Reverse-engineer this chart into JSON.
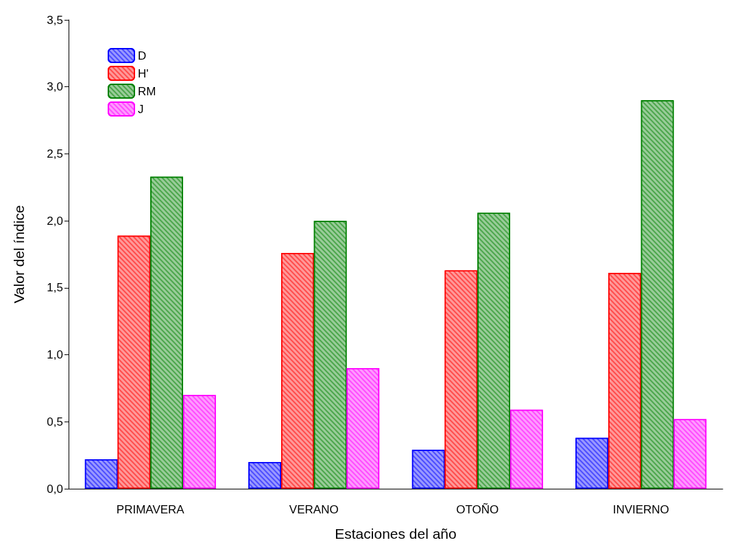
{
  "chart_data": {
    "type": "bar",
    "xlabel": "Estaciones del año",
    "ylabel": "Valor del índice",
    "categories": [
      "PRIMAVERA",
      "VERANO",
      "OTOÑO",
      "INVIERNO"
    ],
    "series": [
      {
        "name": "D",
        "color": "#0000ff",
        "values": [
          0.22,
          0.2,
          0.29,
          0.38
        ]
      },
      {
        "name": "H'",
        "color": "#ff0000",
        "values": [
          1.89,
          1.76,
          1.63,
          1.61
        ]
      },
      {
        "name": "RM",
        "color": "#008000",
        "values": [
          2.33,
          2.0,
          2.06,
          2.9
        ]
      },
      {
        "name": "J",
        "color": "#ff00ff",
        "values": [
          0.7,
          0.9,
          0.59,
          0.52
        ]
      }
    ],
    "ylim": [
      0,
      3.5
    ],
    "yticks": [
      {
        "value": 0,
        "label": "0,0"
      },
      {
        "value": 0.5,
        "label": "0,5"
      },
      {
        "value": 1,
        "label": "1,0"
      },
      {
        "value": 1.5,
        "label": "1,5"
      },
      {
        "value": 2,
        "label": "2,0"
      },
      {
        "value": 2.5,
        "label": "2,5"
      },
      {
        "value": 3,
        "label": "3,0"
      },
      {
        "value": 3.5,
        "label": "3,5"
      }
    ],
    "grid": false,
    "legend": "top left"
  }
}
